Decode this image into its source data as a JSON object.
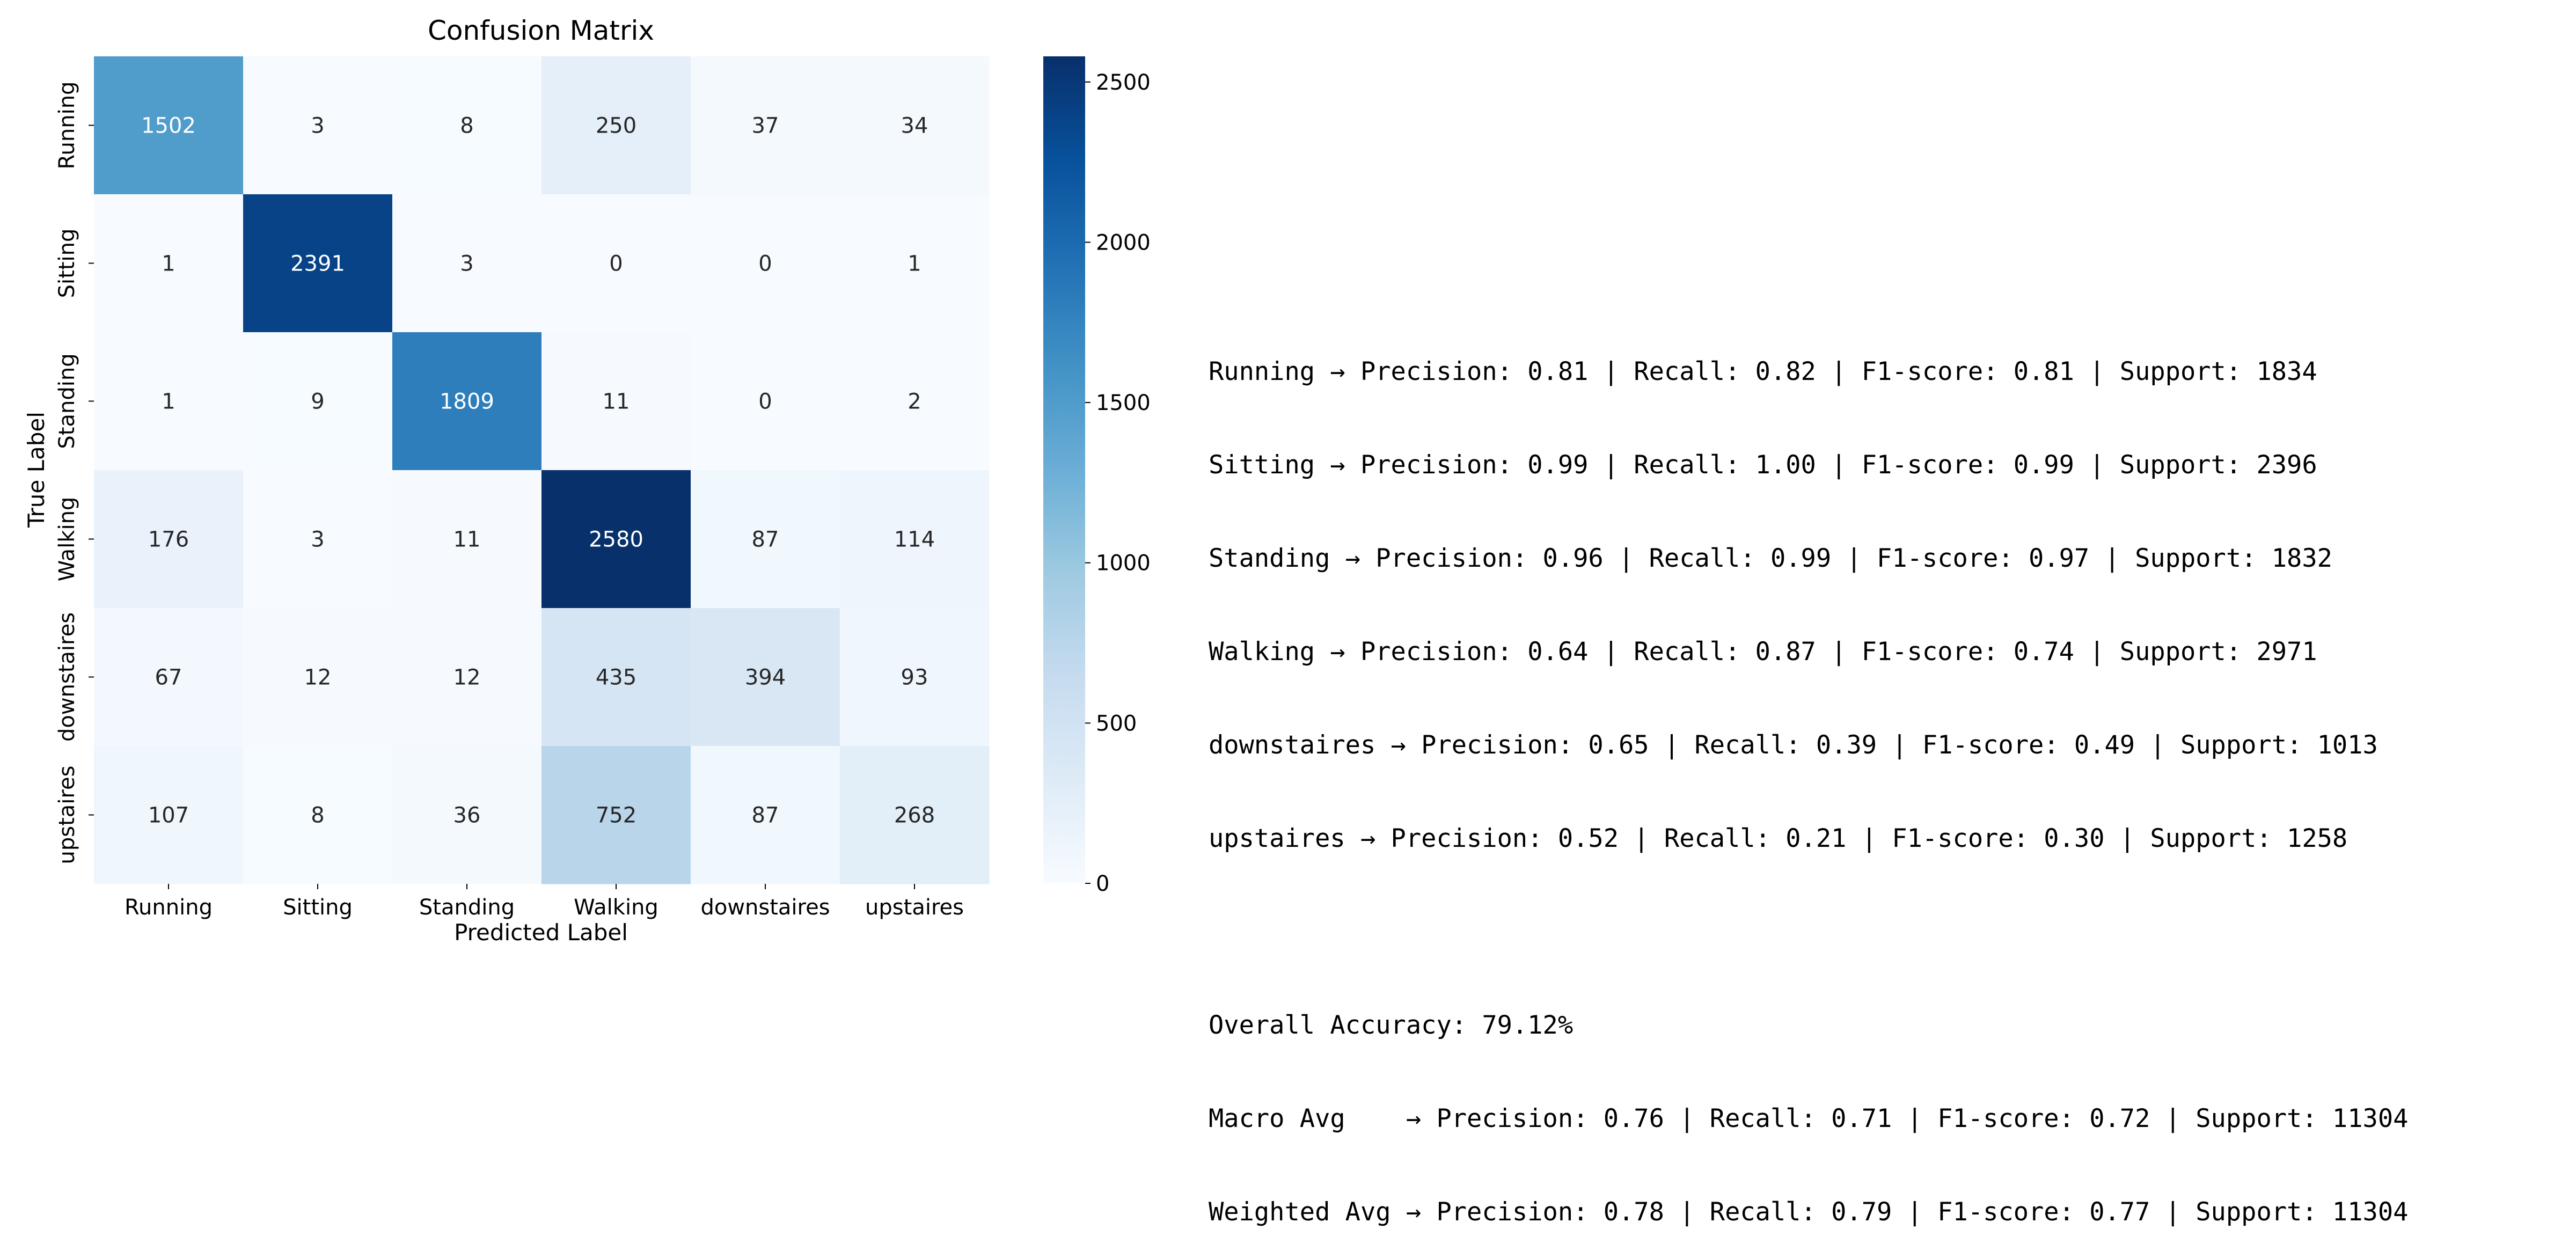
{
  "chart_data": {
    "type": "heatmap",
    "title": "Confusion Matrix",
    "xlabel": "Predicted Label",
    "ylabel": "True Label",
    "x_categories": [
      "Running",
      "Sitting",
      "Standing",
      "Walking",
      "downstaires",
      "upstaires"
    ],
    "y_categories": [
      "Running",
      "Sitting",
      "Standing",
      "Walking",
      "downstaires",
      "upstaires"
    ],
    "values": [
      [
        1502,
        3,
        8,
        250,
        37,
        34
      ],
      [
        1,
        2391,
        3,
        0,
        0,
        1
      ],
      [
        1,
        9,
        1809,
        11,
        0,
        2
      ],
      [
        176,
        3,
        11,
        2580,
        87,
        114
      ],
      [
        67,
        12,
        12,
        435,
        394,
        93
      ],
      [
        107,
        8,
        36,
        752,
        87,
        268
      ]
    ],
    "colormap": "Blues",
    "vmin": 0,
    "vmax": 2580,
    "colorbar_ticks": [
      0,
      500,
      1000,
      1500,
      2000,
      2500
    ],
    "grid": false
  },
  "report": {
    "lines": [
      "Running → Precision: 0.81 | Recall: 0.82 | F1-score: 0.81 | Support: 1834",
      "Sitting → Precision: 0.99 | Recall: 1.00 | F1-score: 0.99 | Support: 2396",
      "Standing → Precision: 0.96 | Recall: 0.99 | F1-score: 0.97 | Support: 1832",
      "Walking → Precision: 0.64 | Recall: 0.87 | F1-score: 0.74 | Support: 2971",
      "downstaires → Precision: 0.65 | Recall: 0.39 | F1-score: 0.49 | Support: 1013",
      "upstaires → Precision: 0.52 | Recall: 0.21 | F1-score: 0.30 | Support: 1258",
      "",
      "Overall Accuracy: 79.12%",
      "Macro Avg    → Precision: 0.76 | Recall: 0.71 | F1-score: 0.72 | Support: 11304",
      "Weighted Avg → Precision: 0.78 | Recall: 0.79 | F1-score: 0.77 | Support: 11304"
    ]
  }
}
